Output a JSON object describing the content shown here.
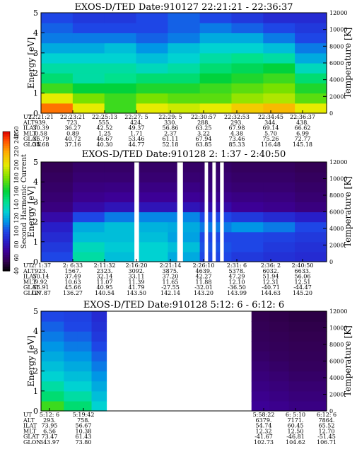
{
  "panels": [
    {
      "title": "EXOS-D/TED   Date:910127  22:21:21 - 22:36:37",
      "ylabel": "Energy [eV]",
      "y2label": "Temperature [K]",
      "ytick_labels": [
        "0",
        "1",
        "2",
        "3",
        "4",
        "5"
      ],
      "y2tick_labels": [
        "0",
        "2000",
        "4000",
        "6000",
        "8000",
        "10000",
        "12000"
      ],
      "ephem_labels": [
        "UT",
        "ALT",
        "ILAT",
        "MLT",
        "GLAT",
        "GLON"
      ],
      "columns": [
        [
          "22:21:21",
          "939.",
          "30.39",
          "0.58",
          "35.79",
          "34.68"
        ],
        [
          "22:23:21",
          "723.",
          "36.27",
          "0.89",
          "40.72",
          "37.16"
        ],
        [
          "22:25:13",
          "555.",
          "42.52",
          "1.25",
          "46.67",
          "40.30"
        ],
        [
          "22:27: 5",
          "424.",
          "49.37",
          "1.71",
          "53.46",
          "44.77"
        ],
        [
          "22:29: 5",
          "330.",
          "56.86",
          "2.37",
          "61.11",
          "52.18"
        ],
        [
          "22:30:57",
          "288.",
          "63.25",
          "3.22",
          "67.94",
          "63.85"
        ],
        [
          "22:32:53",
          "293.",
          "67.98",
          "4.38",
          "73.46",
          "85.33"
        ],
        [
          "22:34:45",
          "344.",
          "69.14",
          "5.70",
          "75.26",
          "116.48"
        ],
        [
          "22:36:37",
          "438.",
          "66.62",
          "6.99",
          "72.77",
          "145.18"
        ]
      ]
    },
    {
      "title": "EXOS-D/TED   Date:910128  2: 1:37 - 2:40:50",
      "ylabel": "Energy [eV]",
      "y2label": "Temperature [K]",
      "ytick_labels": [
        "0",
        "1",
        "2",
        "3",
        "4",
        "5"
      ],
      "y2tick_labels": [
        "0",
        "2000",
        "4000",
        "6000",
        "8000",
        "10000",
        "12000"
      ],
      "ephem_labels": [
        "UT",
        "ALT",
        "ILAT",
        "MLT",
        "GLAT",
        "GLON"
      ],
      "columns": [
        [
          "2: 1:37",
          "923.",
          "50.14",
          "9.92",
          "56.91",
          "127.87"
        ],
        [
          "2: 6:33",
          "1567.",
          "37.49",
          "10.63",
          "45.66",
          "136.27"
        ],
        [
          "2:11:32",
          "2323.",
          "32.14",
          "11.07",
          "40.95",
          "140.54"
        ],
        [
          "2:16:20",
          "3092.",
          "33.11",
          "11.39",
          "41.79",
          "143.50"
        ],
        [
          "2:21:14",
          "3875.",
          "37.20",
          "11.65",
          "-27.55",
          "142.14"
        ],
        [
          "2:26:10",
          "4639.",
          "42.27",
          "11.88",
          "-32.01",
          "143.20"
        ],
        [
          "2:31: 6",
          "5378.",
          "47.29",
          "12.10",
          "-36.50",
          "143.99"
        ],
        [
          "2:36: 2",
          "6032.",
          "51.94",
          "12.31",
          "-40.71",
          "144.63"
        ],
        [
          "2:40:50",
          "6633.",
          "56.06",
          "12.51",
          "-44.47",
          "145.20"
        ]
      ]
    },
    {
      "title": "EXOS-D/TED   Date:910128  5:12: 6 - 6:12: 6",
      "ylabel": "Energy [eV]",
      "y2label": "Temperature [K]",
      "ytick_labels": [
        "0",
        "1",
        "2",
        "3",
        "4",
        "5"
      ],
      "y2tick_labels": [
        "0",
        "2000",
        "4000",
        "6000",
        "8000",
        "10000",
        "12000"
      ],
      "ephem_labels": [
        "UT",
        "ALT",
        "ILAT",
        "MLT",
        "GLAT",
        "GLON"
      ],
      "columns": [
        [
          "5:12: 6",
          "293.",
          "73.95",
          "6.56",
          "73.47",
          "343.97"
        ],
        [
          "5:19:42",
          "758.",
          "56.67",
          "10.38",
          "61.43",
          "73.80"
        ],
        [
          "5:58:22",
          "6379.",
          "54.74",
          "12.32",
          "-41.67",
          "102.73"
        ],
        [
          "6: 5:10",
          "7171.",
          "60.45",
          "12.50",
          "-46.81",
          "104.62"
        ],
        [
          "6:12: 6",
          "7864.",
          "65.52",
          "12.70",
          "-51.45",
          "106.71"
        ]
      ]
    }
  ],
  "colorbar": {
    "label": "Second Harmonic Current",
    "tick_labels": [
      "40",
      "60",
      "80",
      "100",
      "120",
      "140",
      "160",
      "180",
      "200",
      "220",
      "240",
      "250"
    ]
  },
  "chart_data": [
    {
      "type": "heatmap",
      "title": "EXOS-D/TED   Date:910127  22:21:21 - 22:36:37",
      "xlabel": "UT",
      "ylabel": "Energy [eV]",
      "y2label": "Temperature [K]",
      "xlim": [
        "22:21:21",
        "22:36:37"
      ],
      "ylim": [
        0,
        5
      ],
      "y2lim": [
        0,
        12000
      ],
      "x_tick_labels": [
        "22:21:21",
        "22:23:21",
        "22:25:13",
        "22:27: 5",
        "22:29: 5",
        "22:30:57",
        "22:32:53",
        "22:34:45",
        "22:36:37"
      ],
      "x_fraction": [
        0,
        0.111,
        0.222,
        0.333,
        0.444,
        0.556,
        0.667,
        0.778,
        0.889,
        1
      ],
      "energy_eV": [
        0.25,
        0.75,
        1.25,
        1.75,
        2.25,
        2.75,
        3.25,
        3.75,
        4.25,
        4.75
      ],
      "values": [
        [
          230,
          200,
          170,
          200,
          195,
          200,
          210,
          215,
          200,
          140
        ],
        [
          200,
          180,
          170,
          180,
          175,
          175,
          185,
          190,
          175,
          130
        ],
        [
          170,
          160,
          160,
          165,
          165,
          170,
          175,
          180,
          165,
          120
        ],
        [
          150,
          140,
          145,
          150,
          150,
          160,
          165,
          170,
          150,
          110
        ],
        [
          140,
          140,
          140,
          135,
          140,
          150,
          155,
          160,
          135,
          100
        ],
        [
          130,
          130,
          130,
          125,
          130,
          140,
          145,
          140,
          120,
          90
        ],
        [
          120,
          120,
          125,
          115,
          125,
          130,
          130,
          125,
          110,
          85
        ],
        [
          110,
          110,
          110,
          105,
          110,
          120,
          120,
          110,
          100,
          80
        ],
        [
          105,
          100,
          100,
          100,
          105,
          110,
          105,
          100,
          95,
          75
        ],
        [
          100,
          95,
          95,
          100,
          105,
          100,
          95,
          90,
          90,
          70
        ]
      ]
    },
    {
      "type": "heatmap",
      "title": "EXOS-D/TED   Date:910128  2: 1:37 - 2:40:50",
      "xlabel": "UT",
      "ylabel": "Energy [eV]",
      "y2label": "Temperature [K]",
      "xlim": [
        "2: 1:37",
        "2:40:50"
      ],
      "ylim": [
        0,
        5
      ],
      "y2lim": [
        0,
        12000
      ],
      "x_tick_labels": [
        "2: 1:37",
        "2: 6:33",
        "2:11:32",
        "2:16:20",
        "2:21:14",
        "2:26:10",
        "2:31: 6",
        "2:36: 2",
        "2:40:50"
      ],
      "x_fraction": [
        0,
        0.111,
        0.222,
        0.333,
        0.444,
        0.556,
        0.667,
        0.778,
        0.889,
        1
      ],
      "energy_eV": [
        0.25,
        0.75,
        1.25,
        1.75,
        2.25,
        2.75,
        3.25,
        3.75,
        4.25,
        4.75
      ],
      "values": [
        [
          100,
          140,
          125,
          130,
          120,
          100,
          95,
          92,
          90,
          85
        ],
        [
          95,
          135,
          128,
          130,
          125,
          102,
          100,
          95,
          92,
          88
        ],
        [
          90,
          125,
          125,
          125,
          118,
          100,
          100,
          98,
          95,
          90
        ],
        [
          85,
          120,
          125,
          122,
          120,
          110,
          115,
          110,
          100,
          85
        ],
        [
          75,
          100,
          110,
          112,
          112,
          100,
          95,
          90,
          85,
          75
        ],
        [
          65,
          75,
          80,
          80,
          80,
          75,
          70,
          68,
          65,
          62
        ],
        [
          62,
          68,
          70,
          70,
          70,
          68,
          66,
          65,
          62,
          60
        ],
        [
          60,
          65,
          66,
          66,
          66,
          64,
          62,
          62,
          60,
          58
        ],
        [
          58,
          62,
          62,
          62,
          62,
          62,
          60,
          60,
          58,
          56
        ],
        [
          56,
          60,
          60,
          60,
          60,
          60,
          58,
          58,
          56,
          55
        ]
      ],
      "gaps_x_fraction": [
        [
          0.327,
          0.343
        ],
        [
          0.477,
          0.497
        ],
        [
          0.573,
          0.585
        ],
        [
          0.6,
          0.612
        ],
        [
          0.627,
          0.64
        ]
      ]
    },
    {
      "type": "heatmap",
      "title": "EXOS-D/TED   Date:910128  5:12: 6 - 6:12: 6",
      "xlabel": "UT",
      "ylabel": "Energy [eV]",
      "y2label": "Temperature [K]",
      "xlim": [
        "5:12: 6",
        "6:12: 6"
      ],
      "ylim": [
        0,
        5
      ],
      "y2lim": [
        0,
        12000
      ],
      "x_tick_labels": [
        "5:12: 6",
        "5:19:42",
        "5:58:22",
        "6: 5:10",
        "6:12: 6"
      ],
      "x_fraction": [
        0,
        0.08,
        0.127,
        0.177,
        0.229,
        0.737,
        0.8,
        0.868,
        0.934,
        1
      ],
      "energy_eV": [
        0.25,
        0.75,
        1.25,
        1.75,
        2.25,
        2.75,
        3.25,
        3.75,
        4.25,
        4.75
      ],
      "values": [
        [
          170,
          150,
          150,
          130,
          null,
          70,
          68,
          66,
          66,
          64
        ],
        [
          150,
          140,
          140,
          125,
          null,
          68,
          66,
          64,
          64,
          62
        ],
        [
          140,
          130,
          130,
          120,
          null,
          66,
          64,
          62,
          62,
          60
        ],
        [
          130,
          125,
          125,
          115,
          null,
          64,
          62,
          60,
          60,
          58
        ],
        [
          125,
          120,
          120,
          110,
          null,
          62,
          60,
          58,
          58,
          57
        ],
        [
          120,
          115,
          115,
          105,
          null,
          60,
          58,
          57,
          57,
          56
        ],
        [
          115,
          110,
          110,
          100,
          null,
          58,
          57,
          56,
          56,
          55
        ],
        [
          110,
          105,
          105,
          95,
          null,
          57,
          56,
          55,
          55,
          54
        ],
        [
          105,
          100,
          100,
          92,
          null,
          56,
          55,
          54,
          54,
          53
        ],
        [
          100,
          98,
          98,
          90,
          null,
          55,
          54,
          53,
          53,
          52
        ]
      ]
    }
  ]
}
